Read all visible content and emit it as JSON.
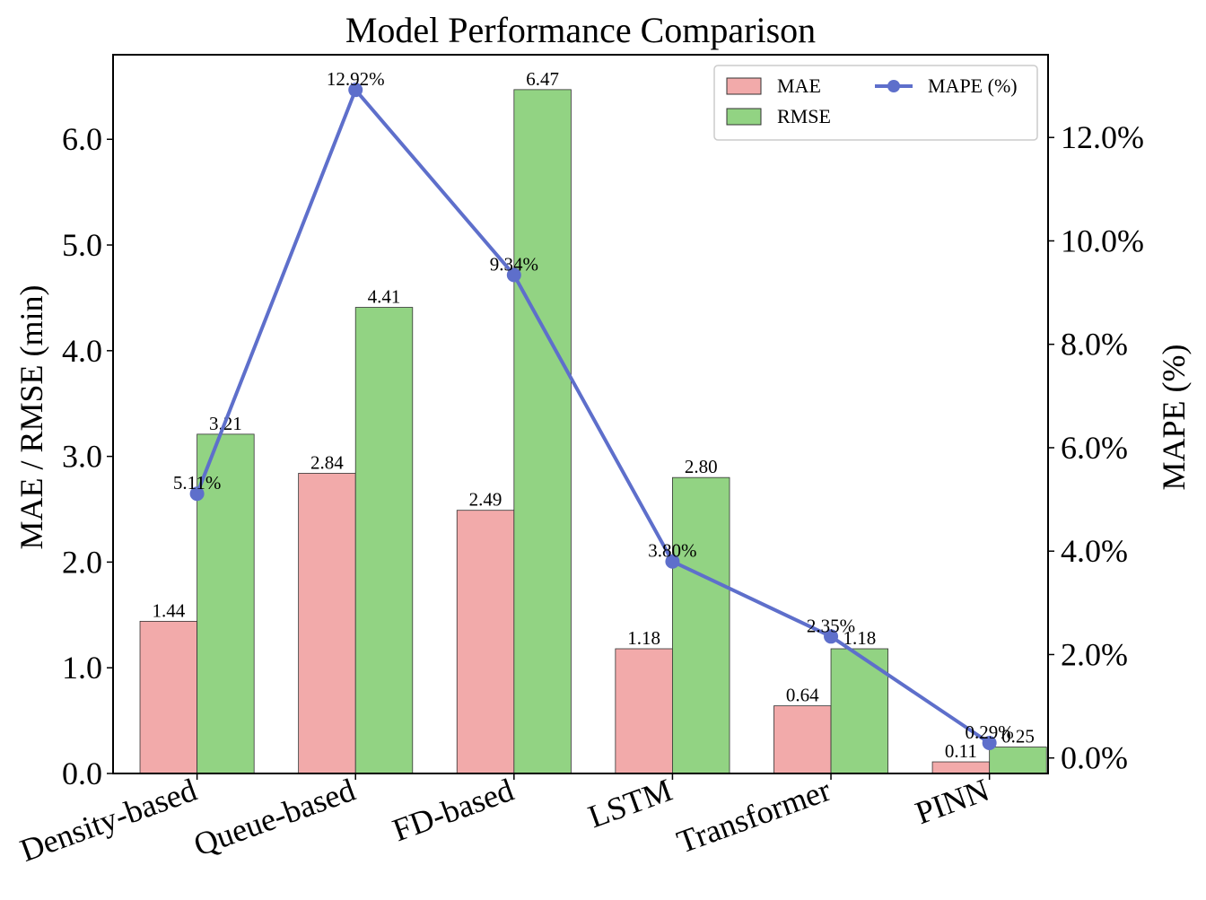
{
  "chart_data": {
    "type": "bar",
    "title": "Model Performance Comparison",
    "categories": [
      "Density-based",
      "Queue-based",
      "FD-based",
      "LSTM",
      "Transformer",
      "PINN"
    ],
    "series": [
      {
        "name": "MAE",
        "axis": "left",
        "kind": "bar",
        "color": "#f2aaaa",
        "values": [
          1.44,
          2.84,
          2.49,
          1.18,
          0.64,
          0.11
        ],
        "labels": [
          "1.44",
          "2.84",
          "2.49",
          "1.18",
          "0.64",
          "0.11"
        ]
      },
      {
        "name": "RMSE",
        "axis": "left",
        "kind": "bar",
        "color": "#92d383",
        "values": [
          3.21,
          4.41,
          6.47,
          2.8,
          1.18,
          0.25
        ],
        "labels": [
          "3.21",
          "4.41",
          "6.47",
          "2.80",
          "1.18",
          "0.25"
        ]
      },
      {
        "name": "MAPE (%)",
        "axis": "right",
        "kind": "line",
        "color": "#5e6fcb",
        "values": [
          5.11,
          12.92,
          9.34,
          3.8,
          2.35,
          0.29
        ],
        "labels": [
          "5.11%",
          "12.92%",
          "9.34%",
          "3.80%",
          "2.35%",
          "0.29%"
        ]
      }
    ],
    "ylabel": "MAE / RMSE (min)",
    "ylabel_right": "MAPE (%)",
    "ylim": [
      0,
      6.8
    ],
    "ylim_right": [
      -0.3,
      13.6
    ],
    "yticks": [
      0,
      1,
      2,
      3,
      4,
      5,
      6
    ],
    "yticklabels": [
      "0.0",
      "1.0",
      "2.0",
      "3.0",
      "4.0",
      "5.0",
      "6.0"
    ],
    "yticks_right": [
      0,
      2,
      4,
      6,
      8,
      10,
      12
    ],
    "yticklabels_right": [
      "0.0%",
      "2.0%",
      "4.0%",
      "6.0%",
      "8.0%",
      "10.0%",
      "12.0%"
    ],
    "grid": false,
    "legend_position": "top-right"
  }
}
